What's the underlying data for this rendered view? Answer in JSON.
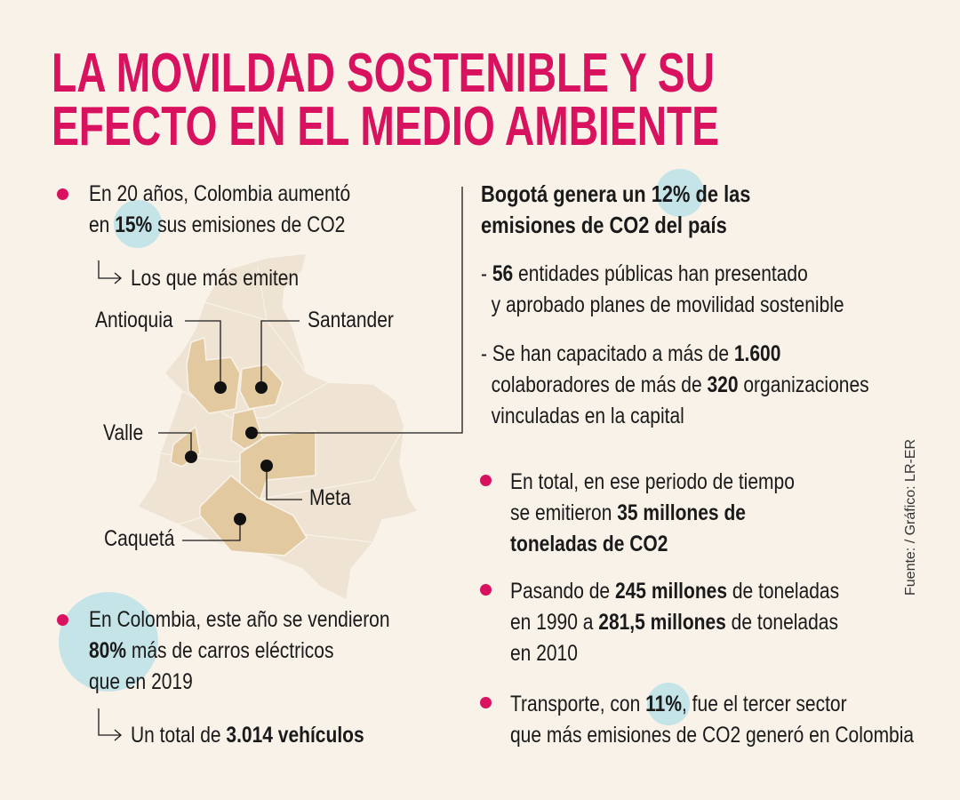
{
  "title": {
    "line1": "LA MOVILDAD SOSTENIBLE Y SU",
    "line2": "EFECTO EN EL MEDIO AMBIENTE"
  },
  "colors": {
    "accent": "#d8125f",
    "highlight": "#c4e4e8",
    "background": "#f8f2e9",
    "map_base": "#efe4d3",
    "map_highlight": "#e2c99f"
  },
  "left": {
    "emissions": [
      [
        {
          "t": "En 20 años, Colombia aumentó"
        }
      ],
      [
        {
          "t": "en "
        },
        {
          "t": "15%",
          "b": true
        },
        {
          "t": " sus emisiones de CO2"
        }
      ]
    ],
    "top_emitters_label": [
      [
        {
          "t": "Los que más emiten"
        }
      ]
    ],
    "cars": [
      [
        {
          "t": "En Colombia, este año se vendieron"
        }
      ],
      [
        {
          "t": "80%",
          "b": true
        },
        {
          "t": " más de carros eléctricos"
        }
      ],
      [
        {
          "t": "que en 2019"
        }
      ]
    ],
    "cars_total": [
      [
        {
          "t": "Un total de "
        },
        {
          "t": "3.014 vehículos",
          "b": true
        }
      ]
    ]
  },
  "map": {
    "regions": [
      "Antioquia",
      "Santander",
      "Valle",
      "Meta",
      "Caquetá"
    ]
  },
  "right": {
    "heading": [
      [
        {
          "t": "Bogotá genera un ",
          "b": true
        },
        {
          "t": "12%",
          "b": true
        },
        {
          "t": " de las",
          "b": true
        }
      ],
      [
        {
          "t": "emisiones de CO2 del país",
          "b": true
        }
      ]
    ],
    "item1": [
      [
        {
          "t": "- "
        },
        {
          "t": "56",
          "b": true
        },
        {
          "t": " entidades públicas han presentado"
        }
      ],
      [
        {
          "t": "  y aprobado planes de movilidad sostenible"
        }
      ]
    ],
    "item2": [
      [
        {
          "t": "- Se han capacitado a más de "
        },
        {
          "t": "1.600",
          "b": true
        }
      ],
      [
        {
          "t": "  colaboradores de más de "
        },
        {
          "t": "320",
          "b": true
        },
        {
          "t": " organizaciones"
        }
      ],
      [
        {
          "t": "  vinculadas en la capital"
        }
      ]
    ],
    "bullet1": [
      [
        {
          "t": "En total, en ese periodo de tiempo"
        }
      ],
      [
        {
          "t": "se emitieron "
        },
        {
          "t": "35 millones de",
          "b": true
        }
      ],
      [
        {
          "t": "toneladas de CO2",
          "b": true
        }
      ]
    ],
    "bullet2": [
      [
        {
          "t": "Pasando de "
        },
        {
          "t": "245 millones",
          "b": true
        },
        {
          "t": " de toneladas"
        }
      ],
      [
        {
          "t": "en 1990 a "
        },
        {
          "t": "281,5 millones",
          "b": true
        },
        {
          "t": " de toneladas"
        }
      ],
      [
        {
          "t": "en 2010"
        }
      ]
    ],
    "bullet3": [
      [
        {
          "t": "Transporte, con "
        },
        {
          "t": "11%",
          "b": true
        },
        {
          "t": ", fue el tercer sector"
        }
      ],
      [
        {
          "t": "que más emisiones de CO2 generó en Colombia"
        }
      ]
    ]
  },
  "source": "Fuente: / Gráfico: LR-ER"
}
